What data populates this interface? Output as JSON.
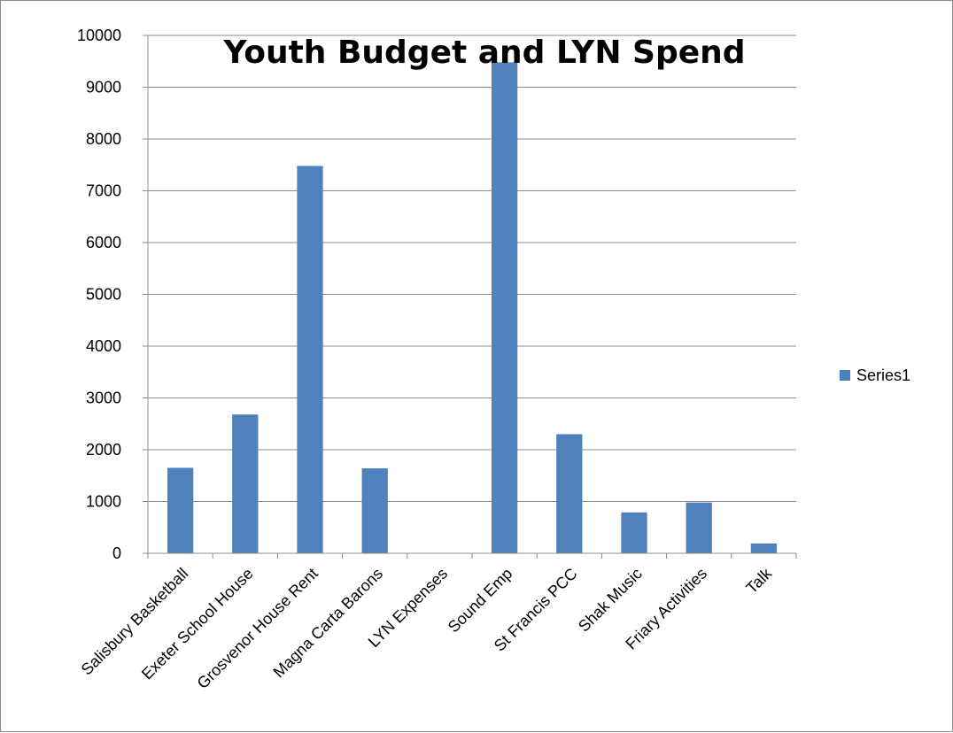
{
  "chart_data": {
    "type": "bar",
    "title": "Youth Budget and LYN Spend",
    "categories": [
      "Salisbury Basketball",
      "Exeter School House",
      "Grosvenor House Rent",
      "Magna Carta Barons",
      "LYN Expenses",
      "Sound Emp",
      "St Francis PCC",
      "Shak Music",
      "Friary Activities",
      "Talk"
    ],
    "series": [
      {
        "name": "Series1",
        "color": "#4f81bd",
        "values": [
          1650,
          2680,
          7480,
          1640,
          0,
          9480,
          2300,
          790,
          980,
          190
        ]
      }
    ],
    "ylim": [
      0,
      10000
    ],
    "yticks": [
      0,
      1000,
      2000,
      3000,
      4000,
      5000,
      6000,
      7000,
      8000,
      9000,
      10000
    ],
    "grid": true,
    "legend": "right"
  }
}
